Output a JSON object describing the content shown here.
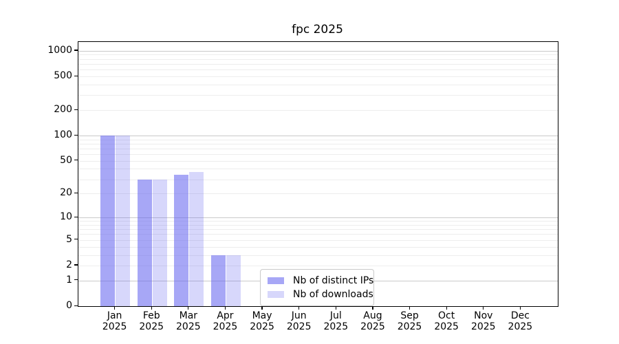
{
  "chart_data": {
    "type": "bar",
    "title": "fpc 2025",
    "categories": [
      {
        "label": "Jan",
        "sublabel": "2025"
      },
      {
        "label": "Feb",
        "sublabel": "2025"
      },
      {
        "label": "Mar",
        "sublabel": "2025"
      },
      {
        "label": "Apr",
        "sublabel": "2025"
      },
      {
        "label": "May",
        "sublabel": "2025"
      },
      {
        "label": "Jun",
        "sublabel": "2025"
      },
      {
        "label": "Jul",
        "sublabel": "2025"
      },
      {
        "label": "Aug",
        "sublabel": "2025"
      },
      {
        "label": "Sep",
        "sublabel": "2025"
      },
      {
        "label": "Oct",
        "sublabel": "2025"
      },
      {
        "label": "Nov",
        "sublabel": "2025"
      },
      {
        "label": "Dec",
        "sublabel": "2025"
      }
    ],
    "series": [
      {
        "name": "Nb of distinct IPs",
        "color": "rgba(100,100,240,0.57)",
        "values": [
          100,
          30,
          34,
          3,
          0,
          0,
          0,
          0,
          0,
          0,
          0,
          0
        ]
      },
      {
        "name": "Nb of downloads",
        "color": "rgba(100,100,240,0.26)",
        "values": [
          100,
          30,
          37,
          3,
          0,
          0,
          0,
          0,
          0,
          0,
          0,
          0
        ]
      }
    ],
    "yscale": "log1p",
    "ylim": [
      0,
      1270
    ],
    "ytick_values": [
      0,
      1,
      2,
      5,
      10,
      20,
      50,
      100,
      200,
      500,
      1000
    ],
    "ytick_labels": [
      "0",
      "1",
      "2",
      "5",
      "10",
      "20",
      "50",
      "100",
      "200",
      "500",
      "1000"
    ],
    "grid_major": [
      1,
      10,
      100,
      1000
    ],
    "grid_minor": [
      2,
      3,
      4,
      5,
      6,
      7,
      8,
      9,
      20,
      30,
      40,
      50,
      60,
      70,
      80,
      90,
      200,
      300,
      400,
      500,
      600,
      700,
      800,
      900
    ],
    "grid": "on",
    "legend_position": "inside-bottom-center",
    "colors": {
      "axis": "#000000",
      "grid_major": "#c9c9c9",
      "grid_minor": "#ededed",
      "background": "#ffffff"
    }
  }
}
